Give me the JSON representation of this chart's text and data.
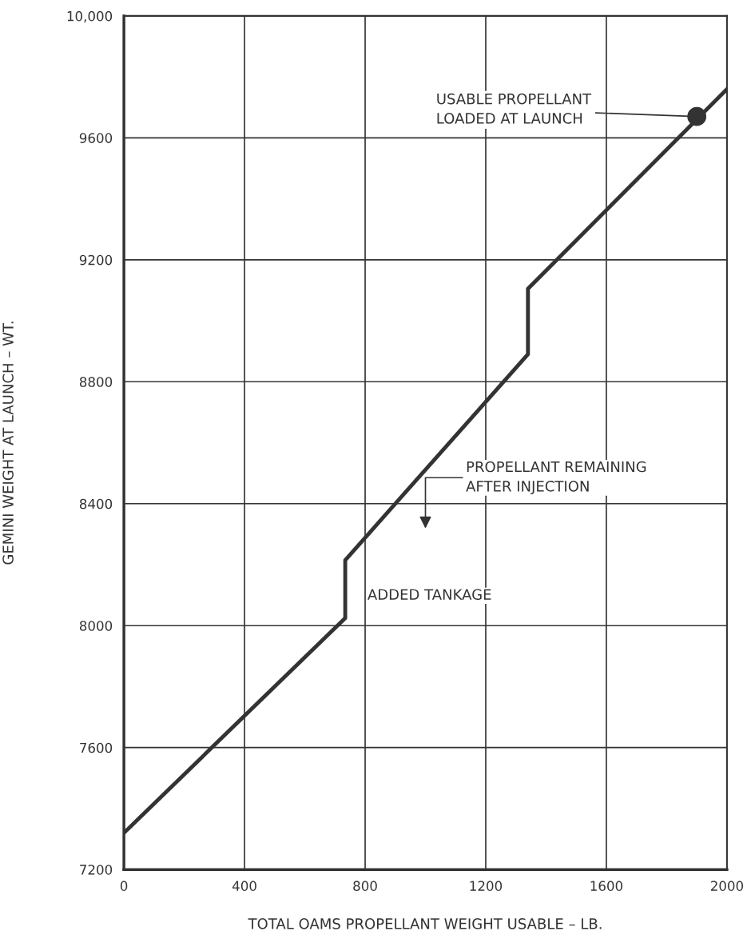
{
  "chart_data": {
    "type": "line",
    "xlabel": "TOTAL OAMS PROPELLANT WEIGHT USABLE – LB.",
    "ylabel": "GEMINI WEIGHT AT LAUNCH – WT.",
    "series": [
      {
        "color": "#333333",
        "x": [
          0,
          734,
          734,
          1340,
          1340,
          2000
        ],
        "values": [
          7320,
          8025,
          8215,
          8890,
          9105,
          9760
        ],
        "marker": "none"
      },
      {
        "type": "scatter",
        "color": "#333333",
        "x": [
          1900
        ],
        "values": [
          9670
        ],
        "marker": "circle"
      }
    ],
    "xlim": [
      0,
      2000
    ],
    "xticks": [
      0,
      400,
      800,
      1200,
      1600,
      2000
    ],
    "ylim": [
      7200,
      10000
    ],
    "yticks": [
      7200,
      7600,
      8000,
      8400,
      8800,
      9200,
      9600,
      {
        "value": 10000,
        "label": "10,000"
      }
    ],
    "grid": true,
    "annotations": [
      {
        "text": "USABLE PROPELLANT\nLOADED AT LAUNCH",
        "x": 1900,
        "y": 9670
      },
      {
        "text": "ADDED TANKAGE",
        "x": 734,
        "y": 8120
      },
      "PROPELLANT REMAINING\nAFTER INJECTION"
    ]
  }
}
